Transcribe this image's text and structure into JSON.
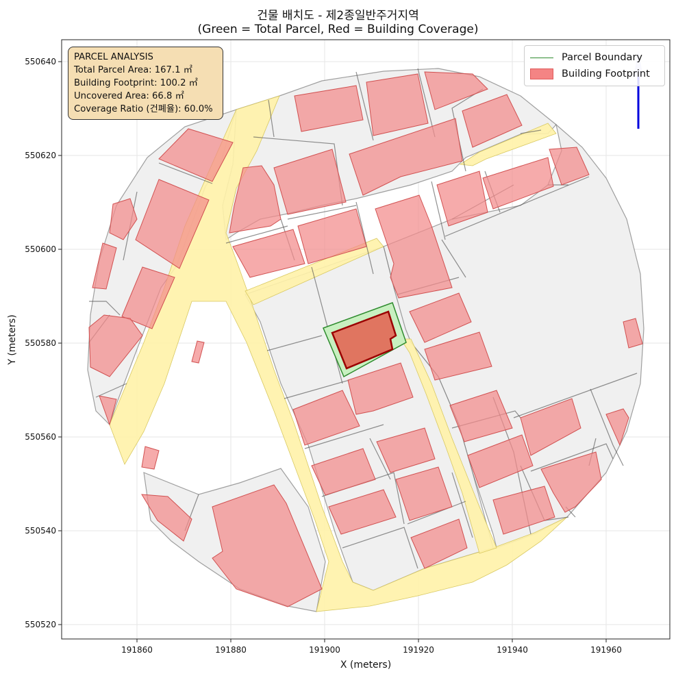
{
  "title": "건물 배치도 - 제2종일반주거지역",
  "subtitle": "(Green = Total Parcel, Red = Building Coverage)",
  "x_axis": {
    "label": "X (meters)",
    "ticks": [
      191860,
      191880,
      191900,
      191920,
      191940,
      191960
    ],
    "range": [
      191844.5,
      191973.5
    ]
  },
  "y_axis": {
    "label": "Y (meters)",
    "ticks": [
      550520,
      550540,
      550560,
      550580,
      550600,
      550620,
      550640
    ],
    "range": [
      550517,
      550645
    ]
  },
  "info_box": {
    "heading": "PARCEL ANALYSIS",
    "total_area": "Total Parcel Area: 167.1 ㎡",
    "footprint": "Building Footprint: 100.2 ㎡",
    "uncovered": "Uncovered Area: 66.8 ㎡",
    "coverage": "Coverage Ratio (건폐율): 60.0%"
  },
  "legend": {
    "parcel_label": "Parcel Boundary",
    "building_label": "Building Footprint"
  },
  "colors": {
    "parcel_edge": "#2e8b2e",
    "parcel_fill": "#c8f0c0",
    "building_fill": "#f28b8b",
    "target_building": "#e07560",
    "road": "#fff2a8",
    "block": "#f0f0f0",
    "north_arrow": "#0000dd"
  },
  "north_arrow_icon": "north-arrow-icon"
}
